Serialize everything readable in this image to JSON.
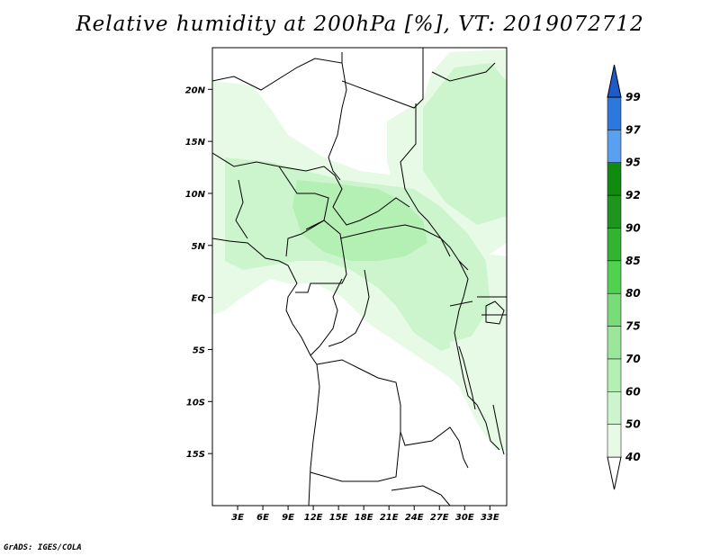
{
  "title": "Relative humidity at 200hPa [%], VT: 2019072712",
  "footer": "GrADS: IGES/COLA",
  "map": {
    "lon_range": [
      0,
      35
    ],
    "lat_range": [
      -20,
      24
    ],
    "lat_ticks": [
      {
        "value": 20,
        "label": "20N"
      },
      {
        "value": 15,
        "label": "15N"
      },
      {
        "value": 10,
        "label": "10N"
      },
      {
        "value": 5,
        "label": "5N"
      },
      {
        "value": 0,
        "label": "EQ"
      },
      {
        "value": -5,
        "label": "5S"
      },
      {
        "value": -10,
        "label": "10S"
      },
      {
        "value": -15,
        "label": "15S"
      }
    ],
    "lon_ticks": [
      {
        "value": 3,
        "label": "3E"
      },
      {
        "value": 6,
        "label": "6E"
      },
      {
        "value": 9,
        "label": "9E"
      },
      {
        "value": 12,
        "label": "12E"
      },
      {
        "value": 15,
        "label": "15E"
      },
      {
        "value": 18,
        "label": "18E"
      },
      {
        "value": 21,
        "label": "21E"
      },
      {
        "value": 24,
        "label": "24E"
      },
      {
        "value": 27,
        "label": "27E"
      },
      {
        "value": 30,
        "label": "30E"
      },
      {
        "value": 33,
        "label": "33E"
      }
    ]
  },
  "colorbar": {
    "levels": [
      "40",
      "50",
      "60",
      "70",
      "75",
      "80",
      "85",
      "90",
      "92",
      "95",
      "97",
      "99"
    ],
    "colors": [
      "#ffffff",
      "#e6fae6",
      "#cdf5cd",
      "#b4f0b4",
      "#9be69b",
      "#78dc78",
      "#50d250",
      "#32b432",
      "#1e961e",
      "#0f8c0f",
      "#5aa0f0",
      "#2d78dc",
      "#1e5ac8"
    ]
  },
  "colors": {
    "land_line": "#000000",
    "humid_light": "#e6fae6",
    "humid_mid": "#cdf5cd",
    "humid_high": "#b4f0b4"
  }
}
